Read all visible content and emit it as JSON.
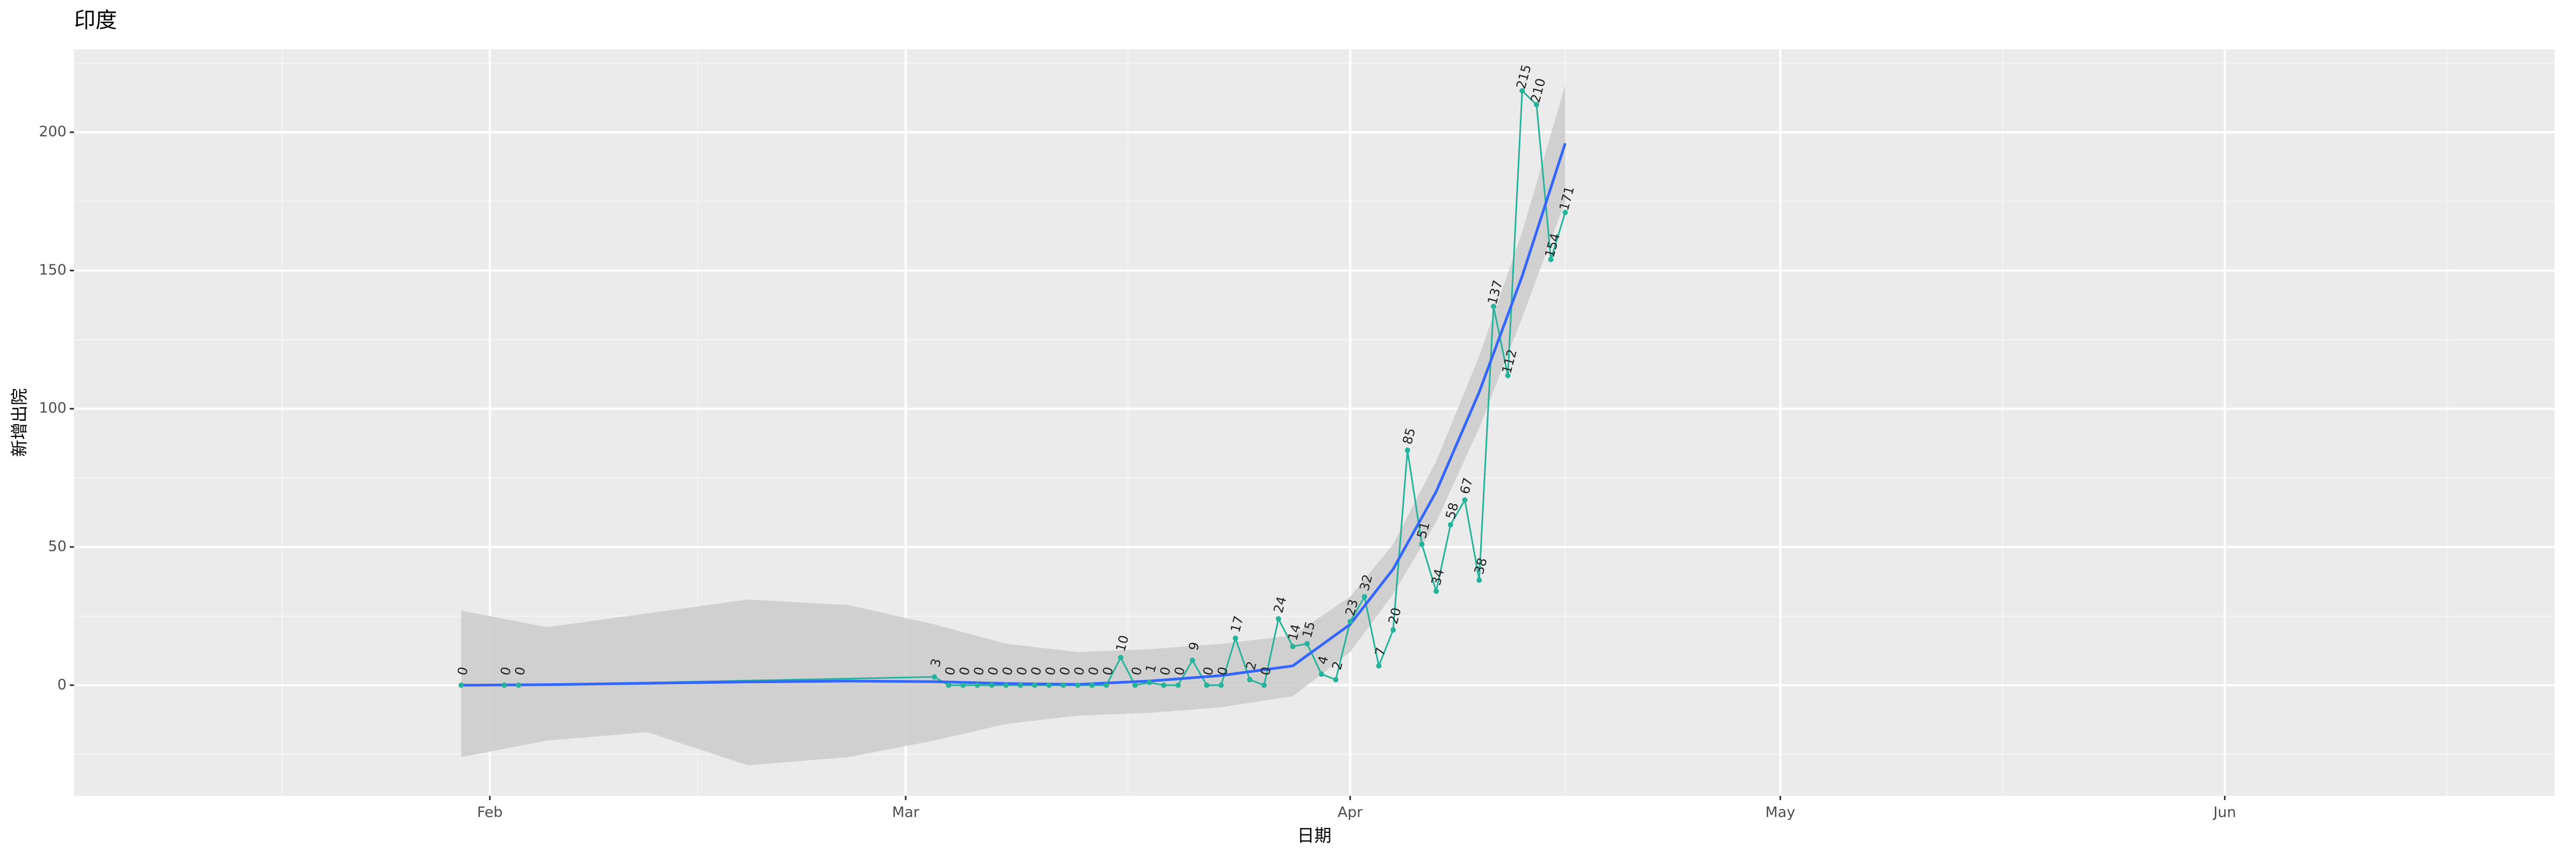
{
  "chart_data": {
    "type": "line",
    "title": "印度",
    "x_label": "日期",
    "y_label": "新增出院",
    "x": [
      "01-30",
      "02-02",
      "02-03",
      "03-03",
      "03-04",
      "03-05",
      "03-06",
      "03-07",
      "03-08",
      "03-09",
      "03-10",
      "03-11",
      "03-12",
      "03-13",
      "03-14",
      "03-15",
      "03-16",
      "03-17",
      "03-18",
      "03-19",
      "03-20",
      "03-21",
      "03-22",
      "03-23",
      "03-24",
      "03-25",
      "03-26",
      "03-27",
      "03-28",
      "03-29",
      "03-30",
      "03-31",
      "04-01",
      "04-02",
      "04-03",
      "04-04",
      "04-05",
      "04-06",
      "04-07",
      "04-08",
      "04-09",
      "04-10",
      "04-11",
      "04-12",
      "04-13",
      "04-14",
      "04-15",
      "04-16"
    ],
    "values": [
      0,
      0,
      0,
      3,
      0,
      0,
      0,
      0,
      0,
      0,
      0,
      0,
      0,
      0,
      0,
      0,
      10,
      0,
      1,
      0,
      0,
      9,
      0,
      0,
      17,
      2,
      0,
      24,
      14,
      15,
      4,
      2,
      23,
      32,
      7,
      20,
      85,
      51,
      34,
      58,
      67,
      38,
      137,
      112,
      215,
      210,
      154,
      171
    ],
    "color": "#26b39b",
    "smooth": {
      "color": "#3366ff",
      "band_color": "#cbcbcb",
      "x": [
        "01-30",
        "02-05",
        "02-12",
        "02-19",
        "02-26",
        "03-03",
        "03-08",
        "03-13",
        "03-18",
        "03-23",
        "03-28",
        "04-01",
        "04-04",
        "04-07",
        "04-10",
        "04-13",
        "04-16"
      ],
      "values": [
        0,
        0.2,
        0.7,
        1.2,
        1.5,
        1.3,
        0.6,
        0.3,
        1.5,
        3.5,
        7,
        22,
        42,
        70,
        106,
        148,
        196
      ],
      "lower": [
        -26,
        -20,
        -17,
        -29,
        -26,
        -20,
        -14,
        -11,
        -10,
        -8,
        -4,
        12,
        33,
        59,
        93,
        133,
        175
      ],
      "upper": [
        27,
        21,
        26,
        31,
        29,
        22,
        15,
        12,
        13,
        15,
        18,
        32,
        51,
        81,
        119,
        164,
        217
      ]
    },
    "xlim": [
      "01-03",
      "06-24"
    ],
    "xticks": [
      {
        "value": "02-01",
        "label": "Feb"
      },
      {
        "value": "03-01",
        "label": "Mar"
      },
      {
        "value": "04-01",
        "label": "Apr"
      },
      {
        "value": "05-01",
        "label": "May"
      },
      {
        "value": "06-01",
        "label": "Jun"
      }
    ],
    "ylim": [
      -40,
      230
    ],
    "yticks": [
      0,
      50,
      100,
      150,
      200
    ],
    "grid": true
  }
}
